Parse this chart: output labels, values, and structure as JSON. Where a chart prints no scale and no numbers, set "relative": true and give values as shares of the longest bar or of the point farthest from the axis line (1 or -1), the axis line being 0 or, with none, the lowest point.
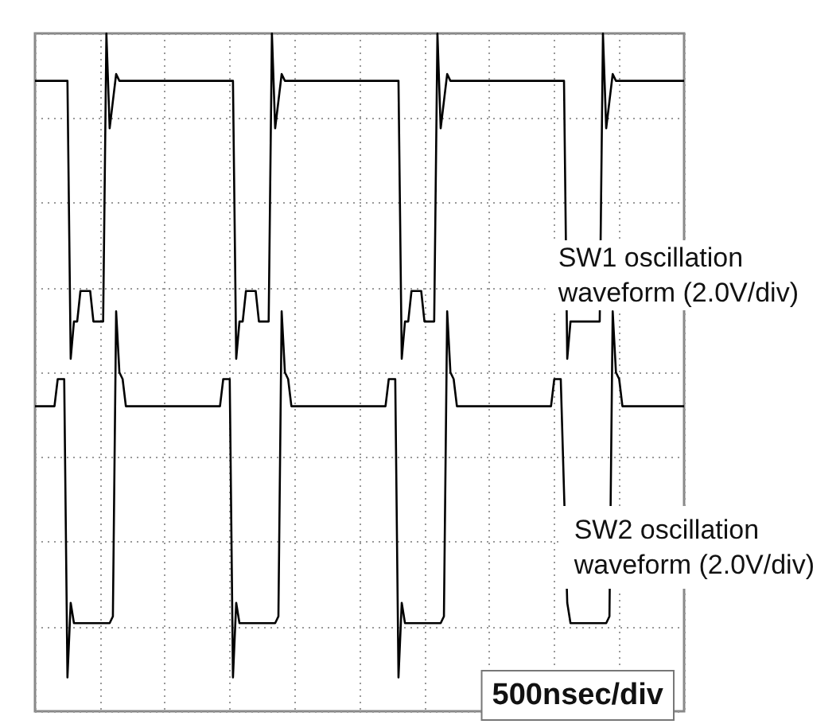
{
  "chart_data": {
    "type": "line",
    "relative": true,
    "grid": true,
    "marker": "none",
    "line_style": "solid",
    "categories": [
      null,
      null,
      null,
      null,
      null,
      null,
      null,
      null,
      null,
      null,
      null,
      null,
      null,
      null,
      null,
      null,
      null,
      null,
      null,
      null,
      null,
      null,
      null,
      null,
      null,
      null,
      null,
      null,
      null,
      null,
      null,
      null,
      null,
      null,
      null,
      null,
      null,
      null,
      null,
      null,
      null,
      null,
      null,
      null,
      null,
      null,
      null,
      null,
      null,
      null,
      null,
      null,
      null,
      null,
      null,
      null,
      null,
      null,
      null,
      null,
      null,
      null,
      null,
      null,
      null,
      null,
      null,
      null,
      null,
      null,
      null,
      null,
      null,
      null,
      null,
      null,
      null,
      null,
      null,
      null,
      null,
      null,
      null,
      null,
      null,
      null,
      null,
      null,
      null,
      null,
      null,
      null,
      null,
      null,
      null,
      null,
      null,
      null,
      null,
      null,
      null,
      null,
      null,
      null,
      null,
      null,
      null,
      null,
      null,
      null,
      null,
      null,
      null,
      null,
      null,
      null,
      null,
      null,
      null,
      null,
      null,
      null,
      null,
      null,
      null,
      null,
      null,
      null,
      null,
      null,
      null,
      null,
      null,
      null,
      null,
      null,
      null,
      null,
      null,
      null,
      null,
      null,
      null,
      null,
      null,
      null,
      null,
      null,
      null,
      null,
      null,
      null,
      null,
      null,
      null,
      null,
      null,
      null,
      null,
      null,
      null,
      null,
      null,
      null,
      null,
      null,
      null,
      null,
      null,
      null,
      null,
      null,
      null,
      null,
      null,
      null,
      null,
      null,
      null,
      null,
      null,
      null,
      null,
      null,
      null,
      null,
      null,
      null,
      null,
      null,
      null,
      null,
      null,
      null,
      null,
      null,
      null,
      null,
      null,
      null,
      null
    ],
    "annotations": [
      "SW1 oscillation\nwaveform (2.0V/div)",
      "SW2 oscillation\nwaveform (2.0V/div)",
      "500nsec/div"
    ],
    "series": [
      {
        "color": "#000000",
        "values": [
          0.93,
          0.93,
          0.93,
          0.93,
          0.93,
          0.93,
          0.93,
          0.93,
          0.93,
          0.93,
          0.93,
          0.52,
          0.575,
          0.575,
          0.62,
          0.62,
          0.62,
          0.62,
          0.575,
          0.575,
          0.575,
          0.575,
          1,
          0.86,
          0.9,
          0.94,
          0.93,
          0.93,
          0.93,
          0.93,
          0.93,
          0.93,
          0.93,
          0.93,
          0.93,
          0.93,
          0.93,
          0.93,
          0.93,
          0.93,
          0.93,
          0.93,
          0.93,
          0.93,
          0.93,
          0.93,
          0.93,
          0.93,
          0.93,
          0.93,
          0.93,
          0.93,
          0.93,
          0.93,
          0.93,
          0.93,
          0.93,
          0.93,
          0.93,
          0.93,
          0.93,
          0.93,
          0.52,
          0.575,
          0.575,
          0.62,
          0.62,
          0.62,
          0.62,
          0.575,
          0.575,
          0.575,
          0.575,
          1,
          0.86,
          0.9,
          0.94,
          0.93,
          0.93,
          0.93,
          0.93,
          0.93,
          0.93,
          0.93,
          0.93,
          0.93,
          0.93,
          0.93,
          0.93,
          0.93,
          0.93,
          0.93,
          0.93,
          0.93,
          0.93,
          0.93,
          0.93,
          0.93,
          0.93,
          0.93,
          0.93,
          0.93,
          0.93,
          0.93,
          0.93,
          0.93,
          0.93,
          0.93,
          0.93,
          0.93,
          0.93,
          0.93,
          0.93,
          0.52,
          0.575,
          0.575,
          0.62,
          0.62,
          0.62,
          0.62,
          0.575,
          0.575,
          0.575,
          0.575,
          1,
          0.86,
          0.9,
          0.94,
          0.93,
          0.93,
          0.93,
          0.93,
          0.93,
          0.93,
          0.93,
          0.93,
          0.93,
          0.93,
          0.93,
          0.93,
          0.93,
          0.93,
          0.93,
          0.93,
          0.93,
          0.93,
          0.93,
          0.93,
          0.93,
          0.93,
          0.93,
          0.93,
          0.93,
          0.93,
          0.93,
          0.93,
          0.93,
          0.93,
          0.93,
          0.93,
          0.93,
          0.93,
          0.93,
          0.93,
          0.52,
          0.575,
          0.575,
          null,
          null,
          null,
          null,
          0.575,
          0.575,
          0.575,
          0.575,
          1,
          0.86,
          0.9,
          0.94,
          0.93,
          0.93,
          0.93,
          0.93,
          0.93,
          0.93,
          0.93,
          0.93,
          0.93,
          0.93,
          0.93,
          0.93,
          0.93,
          0.93,
          0.93,
          0.93,
          0.93,
          0.93,
          0.93,
          0.93,
          0.93,
          0.93
        ]
      },
      {
        "color": "#000000",
        "values": [
          0.45,
          0.45,
          0.45,
          0.45,
          0.45,
          0.45,
          0.45,
          0.49,
          0.49,
          0.49,
          0.05,
          0.16,
          0.13,
          0.13,
          0.13,
          0.13,
          0.13,
          0.13,
          0.13,
          0.13,
          0.13,
          0.13,
          0.13,
          0.13,
          0.14,
          0.59,
          0.5,
          0.49,
          0.45,
          0.45,
          0.45,
          0.45,
          0.45,
          0.45,
          0.45,
          0.45,
          0.45,
          0.45,
          0.45,
          0.45,
          0.45,
          0.45,
          0.45,
          0.45,
          0.45,
          0.45,
          0.45,
          0.45,
          0.45,
          0.45,
          0.45,
          0.45,
          0.45,
          0.45,
          0.45,
          0.45,
          0.45,
          0.45,
          0.49,
          0.49,
          0.49,
          0.05,
          0.16,
          0.13,
          0.13,
          0.13,
          0.13,
          0.13,
          0.13,
          0.13,
          0.13,
          0.13,
          0.13,
          0.13,
          0.13,
          0.14,
          0.59,
          0.5,
          0.49,
          0.45,
          0.45,
          0.45,
          0.45,
          0.45,
          0.45,
          0.45,
          0.45,
          0.45,
          0.45,
          0.45,
          0.45,
          0.45,
          0.45,
          0.45,
          0.45,
          0.45,
          0.45,
          0.45,
          0.45,
          0.45,
          0.45,
          0.45,
          0.45,
          0.45,
          0.45,
          0.45,
          0.45,
          0.45,
          0.45,
          0.49,
          0.49,
          0.49,
          0.05,
          0.16,
          0.13,
          0.13,
          0.13,
          0.13,
          0.13,
          0.13,
          0.13,
          0.13,
          0.13,
          0.13,
          0.13,
          0.13,
          0.14,
          0.59,
          0.5,
          0.49,
          0.45,
          0.45,
          0.45,
          0.45,
          0.45,
          0.45,
          0.45,
          0.45,
          0.45,
          0.45,
          0.45,
          0.45,
          0.45,
          0.45,
          0.45,
          0.45,
          0.45,
          0.45,
          0.45,
          0.45,
          0.45,
          0.45,
          0.45,
          0.45,
          0.45,
          0.45,
          0.45,
          0.45,
          0.45,
          0.45,
          0.49,
          0.49,
          0.49,
          null,
          0.16,
          0.13,
          0.13,
          0.13,
          0.13,
          0.13,
          0.13,
          0.13,
          0.13,
          0.13,
          0.13,
          0.13,
          0.13,
          0.14,
          0.59,
          0.5,
          0.49,
          0.45,
          0.45,
          0.45,
          0.45,
          0.45,
          0.45,
          0.45,
          0.45,
          0.45,
          0.45,
          0.45,
          0.45,
          0.45,
          0.45,
          0.45,
          0.45,
          0.45,
          0.45,
          0.45,
          0.45
        ]
      }
    ]
  }
}
